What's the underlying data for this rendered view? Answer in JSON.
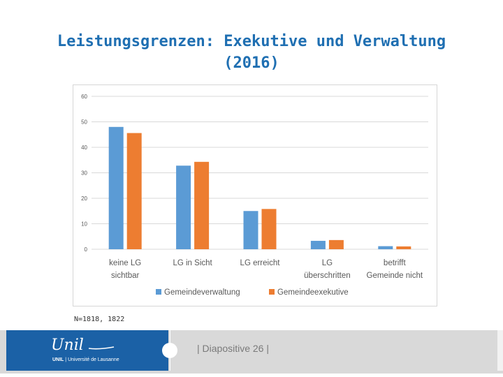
{
  "slide": {
    "title": "Leistungsgrenzen: Exekutive und Verwaltung (2016)",
    "note": "N=1818, 1822",
    "footer": {
      "logo_word": "Unil",
      "logo_brand": "UNIL",
      "logo_separator": " | ",
      "logo_university": "Université de Lausanne",
      "slide_label": "| Diapositive 26 |"
    }
  },
  "colors": {
    "series_1": "#5b9bd5",
    "series_2": "#ed7d31",
    "title": "#1f6fb2",
    "footer_blue": "#1b61a6",
    "footer_gray": "#d9d9d9"
  },
  "chart_data": {
    "type": "bar",
    "title": "",
    "xlabel": "",
    "ylabel": "",
    "ylim": [
      0,
      60
    ],
    "yticks": [
      0,
      10,
      20,
      30,
      40,
      50,
      60
    ],
    "grid": true,
    "legend_position": "bottom",
    "categories": [
      [
        "keine LG",
        "sichtbar"
      ],
      [
        "LG in Sicht"
      ],
      [
        "LG erreicht"
      ],
      [
        "LG",
        "überschritten"
      ],
      [
        "betrifft",
        "Gemeinde nicht"
      ]
    ],
    "series": [
      {
        "name": "Gemeindeverwaltung",
        "values": [
          48,
          32.8,
          15,
          3.3,
          1.2
        ]
      },
      {
        "name": "Gemeindeexekutive",
        "values": [
          45.6,
          34.3,
          15.8,
          3.6,
          1.1
        ]
      }
    ]
  }
}
